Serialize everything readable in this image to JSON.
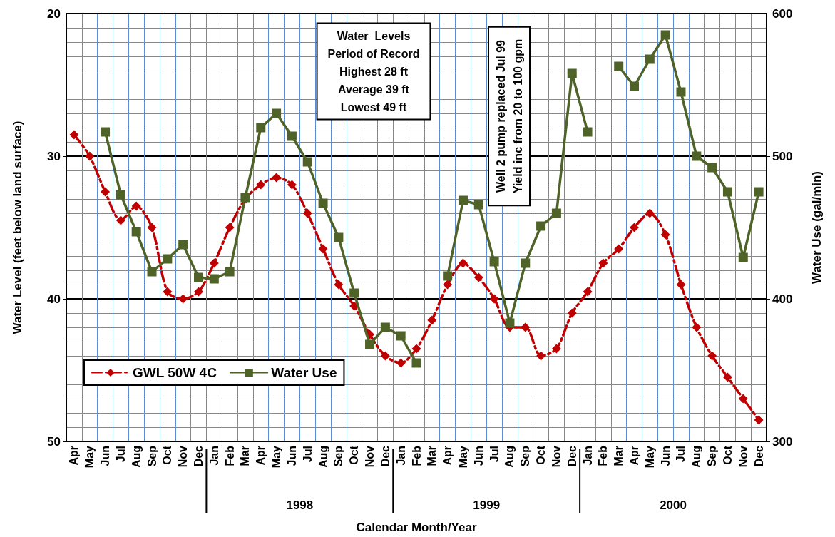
{
  "chart_data": {
    "type": "line",
    "xlabel": "Calendar Month/Year",
    "ylabel": "Water Level (feet below land surface)",
    "y2label": "Water Use (gal/min)",
    "categories": [
      "Apr",
      "May",
      "Jun",
      "Jul",
      "Aug",
      "Sep",
      "Oct",
      "Nov",
      "Dec",
      "Jan",
      "Feb",
      "Mar",
      "Apr",
      "May",
      "Jun",
      "Jul",
      "Aug",
      "Sep",
      "Oct",
      "Nov",
      "Dec",
      "Jan",
      "Feb",
      "Mar",
      "Apr",
      "May",
      "Jun",
      "Jul",
      "Aug",
      "Sep",
      "Oct",
      "Nov",
      "Dec",
      "Jan",
      "Feb",
      "Mar",
      "Apr",
      "May",
      "Jun",
      "Jul",
      "Aug",
      "Sep",
      "Oct",
      "Nov",
      "Dec"
    ],
    "series": [
      {
        "name": "GWL 50W 4C",
        "color": "#c00000",
        "marker": "diamond",
        "line_style": "dashed",
        "values": [
          28.5,
          30,
          32.5,
          34.5,
          33.5,
          35,
          39.5,
          40,
          39.5,
          37.5,
          35,
          33,
          32,
          31.5,
          32,
          34,
          36.5,
          39,
          40.5,
          42.5,
          44,
          44.5,
          43.5,
          41.5,
          39,
          37.5,
          38.5,
          40,
          42,
          42,
          44,
          43.5,
          41,
          39.5,
          37.5,
          36.5,
          35,
          34,
          35.5,
          39,
          42,
          44,
          45.5,
          47,
          48.5
        ]
      },
      {
        "name": "Water Use",
        "color": "#4f6228",
        "marker": "square",
        "line_style": "solid",
        "axis": "y2",
        "values": [
          null,
          null,
          517,
          473,
          447,
          419,
          428,
          438,
          415,
          414,
          419,
          471,
          520,
          530,
          514,
          496,
          467,
          443,
          404,
          368,
          380,
          374,
          355,
          null,
          416,
          469,
          466,
          426,
          383,
          425,
          451,
          460,
          558,
          517,
          null,
          563,
          549,
          568,
          585,
          545,
          500,
          492,
          475,
          429,
          475
        ]
      }
    ],
    "ylim": [
      50,
      20
    ],
    "yticks": [
      20,
      30,
      40,
      50
    ],
    "y2lim": [
      300,
      600
    ],
    "y2ticks": [
      300,
      400,
      500,
      600
    ],
    "grid": true,
    "legend": "bottom left",
    "annotations": [
      "Water  Levels\nPeriod of Record\nHighest 28 ft\nAverage 39 ft\nLowest 49 ft",
      "Well 2 pump replaced Jul 99\nYield inc from 20 to 100 gpm",
      "1998",
      "1999",
      "2000"
    ]
  }
}
